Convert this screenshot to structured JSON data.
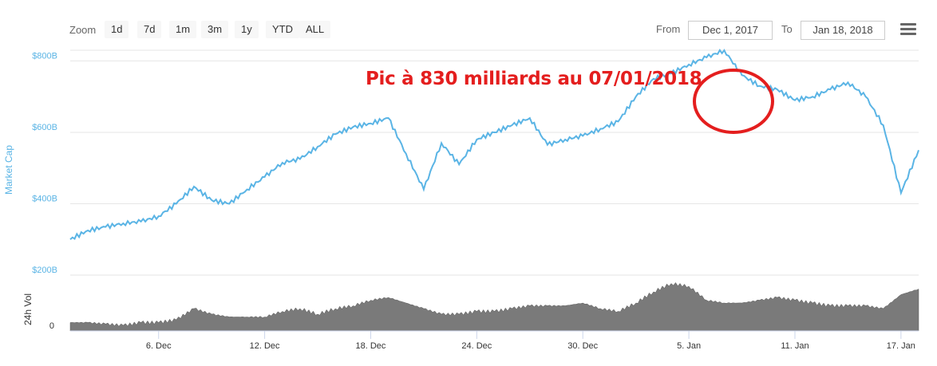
{
  "toolbar": {
    "zoom_label": "Zoom",
    "zoom_buttons": [
      "1d",
      "7d",
      "1m",
      "3m",
      "1y",
      "YTD",
      "ALL"
    ],
    "from_label": "From",
    "from_value": "Dec 1, 2017",
    "to_label": "To",
    "to_value": "Jan 18, 2018",
    "menu_icon": "hamburger-menu-icon"
  },
  "annotation": {
    "text": "Pic à 830 milliards au 07/01/2018",
    "color": "#e41e1e"
  },
  "chart_data": [
    {
      "type": "line",
      "ylabel": "Market Cap",
      "ylim": [
        200,
        830
      ],
      "yticks": [
        200,
        400,
        600,
        800
      ],
      "ytick_labels": [
        "$200B",
        "$400B",
        "$600B",
        "$800B"
      ],
      "line_color": "#5ab4e5",
      "grid": true,
      "x_range": [
        "Dec 1",
        "Jan 18"
      ],
      "x": [
        "Dec 1",
        "Dec 2",
        "Dec 3",
        "Dec 4",
        "Dec 5",
        "Dec 6",
        "Dec 7",
        "Dec 8",
        "Dec 9",
        "Dec 10",
        "Dec 11",
        "Dec 12",
        "Dec 13",
        "Dec 14",
        "Dec 15",
        "Dec 16",
        "Dec 17",
        "Dec 18",
        "Dec 19",
        "Dec 20",
        "Dec 21",
        "Dec 22",
        "Dec 23",
        "Dec 24",
        "Dec 25",
        "Dec 26",
        "Dec 27",
        "Dec 28",
        "Dec 29",
        "Dec 30",
        "Dec 31",
        "Jan 1",
        "Jan 2",
        "Jan 3",
        "Jan 4",
        "Jan 5",
        "Jan 6",
        "Jan 7",
        "Jan 8",
        "Jan 9",
        "Jan 10",
        "Jan 11",
        "Jan 12",
        "Jan 13",
        "Jan 14",
        "Jan 15",
        "Jan 16",
        "Jan 17",
        "Jan 18"
      ],
      "values": [
        300,
        325,
        335,
        345,
        350,
        365,
        400,
        448,
        410,
        400,
        440,
        475,
        515,
        525,
        560,
        595,
        615,
        625,
        640,
        540,
        440,
        570,
        510,
        580,
        600,
        620,
        640,
        565,
        580,
        590,
        610,
        630,
        700,
        750,
        765,
        790,
        810,
        830,
        760,
        730,
        720,
        690,
        700,
        720,
        740,
        700,
        620,
        430,
        550
      ]
    },
    {
      "type": "area",
      "ylabel": "24h Vol",
      "ylim": [
        0,
        20
      ],
      "yticks": [
        0
      ],
      "ytick_labels": [
        "0"
      ],
      "fill_color": "#7a7a7a",
      "x_range": [
        "Dec 1",
        "Jan 18"
      ],
      "xtick_labels": [
        "6. Dec",
        "12. Dec",
        "18. Dec",
        "24. Dec",
        "30. Dec",
        "5. Jan",
        "11. Jan",
        "17. Jan"
      ],
      "values": [
        3,
        3,
        2.5,
        2,
        3,
        3,
        4,
        8,
        6,
        5,
        5,
        5,
        7,
        8,
        6,
        8,
        9,
        11,
        12,
        10,
        8,
        6,
        6,
        7,
        7,
        8,
        9,
        9,
        9,
        10,
        8,
        7,
        10,
        14,
        17,
        16,
        11,
        10,
        10,
        11,
        12,
        11,
        10,
        9,
        9,
        9,
        8,
        13,
        15
      ]
    }
  ]
}
